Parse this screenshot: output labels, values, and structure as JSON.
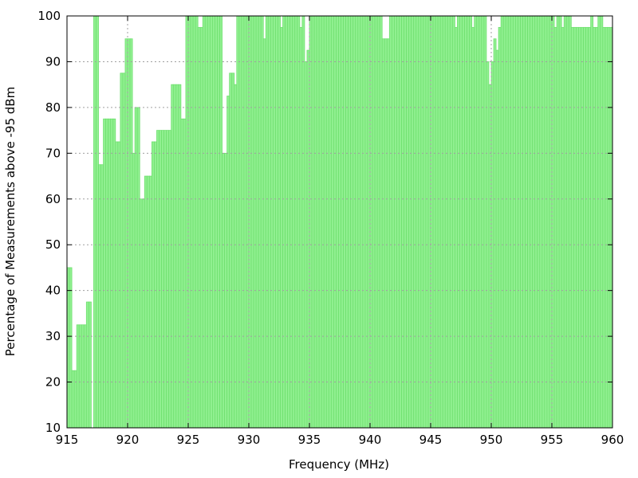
{
  "chart_data": {
    "type": "bar",
    "x_label": "Frequency (MHz)",
    "y_label": "Percentage of Measurements above -95 dBm",
    "color": "#90f090",
    "grid": true,
    "xlim": [
      915,
      960
    ],
    "xticks": [
      915,
      920,
      925,
      930,
      935,
      940,
      945,
      950,
      955,
      960
    ],
    "ylim": [
      10,
      100
    ],
    "yticks": [
      10,
      20,
      30,
      40,
      50,
      60,
      70,
      80,
      90,
      100
    ],
    "x": [
      915,
      915.2,
      915.4,
      915.6,
      915.8,
      916,
      916.2,
      916.4,
      916.6,
      916.8,
      917,
      917.2,
      917.4,
      917.6,
      917.8,
      918,
      918.2,
      918.4,
      918.6,
      918.8,
      919,
      919.2,
      919.4,
      919.6,
      919.8,
      920,
      920.2,
      920.4,
      920.6,
      920.8,
      921,
      921.2,
      921.4,
      921.6,
      921.8,
      922,
      922.2,
      922.4,
      922.6,
      922.8,
      923,
      923.2,
      923.4,
      923.6,
      923.8,
      924,
      924.2,
      924.4,
      924.6,
      924.8,
      925,
      925.2,
      925.4,
      925.6,
      925.8,
      926,
      926.2,
      926.4,
      926.6,
      926.8,
      927,
      927.2,
      927.4,
      927.6,
      927.8,
      928,
      928.2,
      928.4,
      928.6,
      928.8,
      929,
      929.2,
      929.4,
      929.6,
      929.8,
      930,
      930.2,
      930.4,
      930.6,
      930.8,
      931,
      931.2,
      931.4,
      931.6,
      931.8,
      932,
      932.2,
      932.4,
      932.6,
      932.8,
      933,
      933.2,
      933.4,
      933.6,
      933.8,
      934,
      934.2,
      934.4,
      934.6,
      934.8,
      935,
      935.2,
      935.4,
      935.6,
      935.8,
      936,
      936.2,
      936.4,
      936.6,
      936.8,
      937,
      937.2,
      937.4,
      937.6,
      937.8,
      938,
      938.2,
      938.4,
      938.6,
      938.8,
      939,
      939.2,
      939.4,
      939.6,
      939.8,
      940,
      940.2,
      940.4,
      940.6,
      940.8,
      941,
      941.2,
      941.4,
      941.6,
      941.8,
      942,
      942.2,
      942.4,
      942.6,
      942.8,
      943,
      943.2,
      943.4,
      943.6,
      943.8,
      944,
      944.2,
      944.4,
      944.6,
      944.8,
      945,
      945.2,
      945.4,
      945.6,
      945.8,
      946,
      946.2,
      946.4,
      946.6,
      946.8,
      947,
      947.2,
      947.4,
      947.6,
      947.8,
      948,
      948.2,
      948.4,
      948.6,
      948.8,
      949,
      949.2,
      949.4,
      949.6,
      949.8,
      950,
      950.2,
      950.4,
      950.6,
      950.8,
      951,
      951.2,
      951.4,
      951.6,
      951.8,
      952,
      952.2,
      952.4,
      952.6,
      952.8,
      953,
      953.2,
      953.4,
      953.6,
      953.8,
      954,
      954.2,
      954.4,
      954.6,
      954.8,
      955,
      955.2,
      955.4,
      955.6,
      955.8,
      956,
      956.2,
      956.4,
      956.6,
      956.8,
      957,
      957.2,
      957.4,
      957.6,
      957.8,
      958,
      958.2,
      958.4,
      958.6,
      958.8,
      959,
      959.2,
      959.4,
      959.6,
      959.8
    ],
    "values": [
      45,
      45,
      22.5,
      22.5,
      32.5,
      32.5,
      32.5,
      32.5,
      37.5,
      37.5,
      10,
      100,
      100,
      67.5,
      67.5,
      77.5,
      77.5,
      77.5,
      77.5,
      77.5,
      72.5,
      72.5,
      87.5,
      87.5,
      95,
      95,
      95,
      70,
      80,
      80,
      60,
      60,
      65,
      65,
      65,
      72.5,
      72.5,
      75,
      75,
      75,
      75,
      75,
      75,
      85,
      85,
      85,
      85,
      77.5,
      77.5,
      100,
      100,
      100,
      100,
      100,
      97.5,
      97.5,
      100,
      100,
      100,
      100,
      100,
      100,
      100,
      100,
      70,
      70,
      82.5,
      87.5,
      87.5,
      85,
      100,
      100,
      100,
      100,
      100,
      100,
      100,
      100,
      100,
      100,
      100,
      95,
      100,
      100,
      100,
      100,
      100,
      100,
      97.5,
      100,
      100,
      100,
      100,
      100,
      100,
      100,
      97.5,
      100,
      90,
      92.5,
      100,
      100,
      100,
      100,
      100,
      100,
      100,
      100,
      100,
      100,
      100,
      100,
      100,
      100,
      100,
      100,
      100,
      100,
      100,
      100,
      100,
      100,
      100,
      100,
      100,
      100,
      100,
      100,
      100,
      100,
      95,
      95,
      95,
      100,
      100,
      100,
      100,
      100,
      100,
      100,
      100,
      100,
      100,
      100,
      100,
      100,
      100,
      100,
      100,
      100,
      100,
      100,
      100,
      100,
      100,
      100,
      100,
      100,
      100,
      100,
      97.5,
      100,
      100,
      100,
      100,
      100,
      100,
      97.5,
      100,
      100,
      100,
      100,
      100,
      90,
      85,
      90,
      95,
      92.5,
      97.5,
      100,
      100,
      100,
      100,
      100,
      100,
      100,
      100,
      100,
      100,
      100,
      100,
      100,
      100,
      100,
      100,
      100,
      100,
      100,
      100,
      100,
      100,
      97.5,
      100,
      100,
      97.5,
      100,
      100,
      100,
      97.5,
      97.5,
      97.5,
      97.5,
      97.5,
      97.5,
      97.5,
      97.5,
      100,
      97.5,
      97.5,
      100,
      100,
      97.5,
      97.5,
      97.5,
      97.5
    ]
  }
}
